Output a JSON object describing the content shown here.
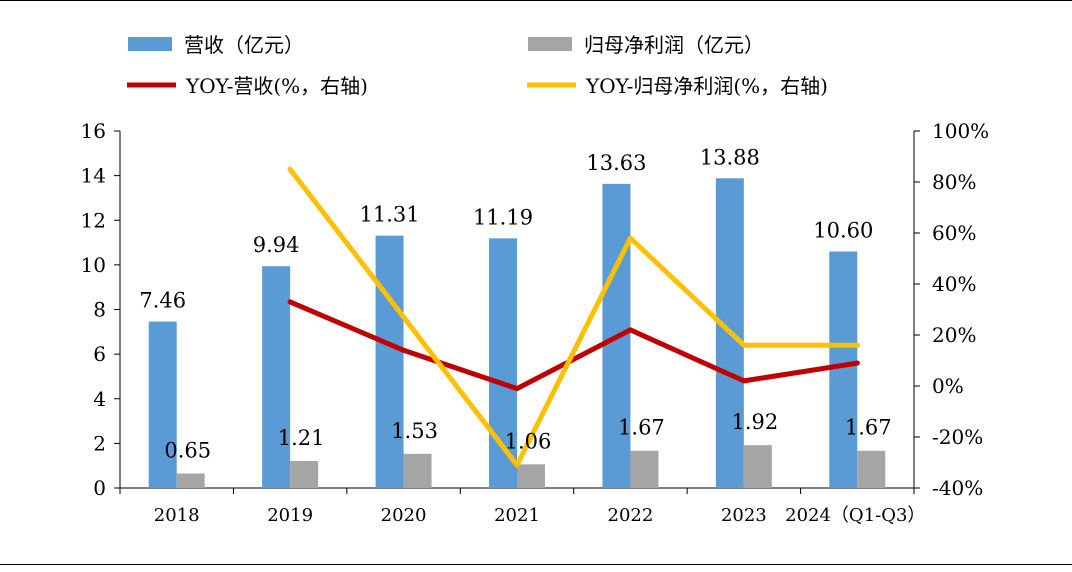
{
  "chart_data": {
    "type": "bar",
    "categories": [
      "2018",
      "2019",
      "2020",
      "2021",
      "2022",
      "2023",
      "2024（Q1-Q3）"
    ],
    "series": [
      {
        "name": "营收（亿元）",
        "kind": "bar",
        "axis": "left",
        "color": "#5b9bd5",
        "values": [
          7.46,
          9.94,
          11.31,
          11.19,
          13.63,
          13.88,
          10.6
        ],
        "labels": [
          "7.46",
          "9.94",
          "11.31",
          "11.19",
          "13.63",
          "13.88",
          "10.60"
        ]
      },
      {
        "name": "归母净利润（亿元）",
        "kind": "bar",
        "axis": "left",
        "color": "#a5a5a5",
        "values": [
          0.65,
          1.21,
          1.53,
          1.06,
          1.67,
          1.92,
          1.67
        ],
        "labels": [
          "0.65",
          "1.21",
          "1.53",
          "1.06",
          "1.67",
          "1.92",
          "1.67"
        ]
      },
      {
        "name": "YOY-营收(%，右轴)",
        "kind": "line",
        "axis": "right",
        "color": "#c00000",
        "values": [
          null,
          33,
          14,
          -1,
          22,
          2,
          9
        ]
      },
      {
        "name": "YOY-归母净利润(%，右轴)",
        "kind": "line",
        "axis": "right",
        "color": "#ffc000",
        "values": [
          null,
          85,
          27,
          -31,
          58,
          16,
          16
        ]
      }
    ],
    "y_left": {
      "min": 0,
      "max": 16,
      "ticks": [
        "0",
        "2",
        "4",
        "6",
        "8",
        "10",
        "12",
        "14",
        "16"
      ]
    },
    "y_right": {
      "min": -40,
      "max": 100,
      "ticks": [
        "-40%",
        "-20%",
        "0%",
        "20%",
        "40%",
        "60%",
        "80%",
        "100%"
      ]
    },
    "legend_placement": "top",
    "grid": false
  }
}
